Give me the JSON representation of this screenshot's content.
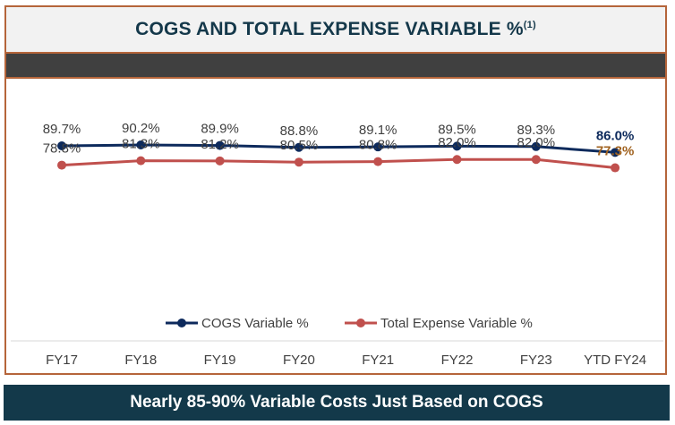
{
  "header": {
    "title": "COGS AND TOTAL EXPENSE VARIABLE %",
    "footnote_marker": "(1)"
  },
  "footer": {
    "text": "Nearly 85-90% Variable Costs Just Based on COGS"
  },
  "colors": {
    "cogs_series": "#0d2a5c",
    "expense_series": "#c0504d",
    "last_cogs_label": "#0d2a5c",
    "last_expense_label": "#a0621f",
    "border": "#b5653a"
  },
  "chart_data": {
    "type": "line",
    "categories": [
      "FY17",
      "FY18",
      "FY19",
      "FY20",
      "FY21",
      "FY22",
      "FY23",
      "YTD FY24"
    ],
    "series": [
      {
        "name": "COGS Variable %",
        "values": [
          89.7,
          90.2,
          89.9,
          88.8,
          89.1,
          89.5,
          89.3,
          86.0
        ],
        "labels": [
          "89.7%",
          "90.2%",
          "89.9%",
          "88.8%",
          "89.1%",
          "89.5%",
          "89.3%",
          "86.0%"
        ]
      },
      {
        "name": "Total Expense Variable %",
        "values": [
          78.8,
          81.3,
          81.2,
          80.5,
          80.8,
          82.0,
          82.0,
          77.3
        ],
        "labels": [
          "78.8%",
          "81.3%",
          "81.2%",
          "80.5%",
          "80.8%",
          "82.0%",
          "82.0%",
          "77.3%"
        ]
      }
    ],
    "legend_position": "bottom",
    "grid": false
  }
}
